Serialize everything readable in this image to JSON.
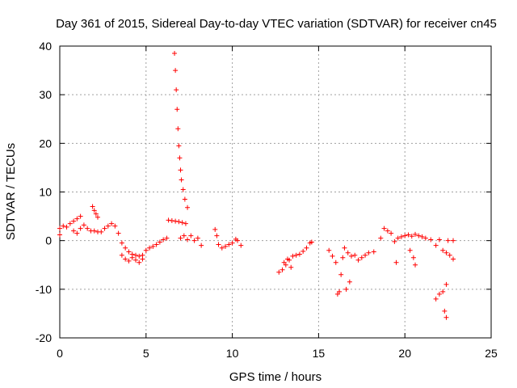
{
  "chart_data": {
    "type": "scatter",
    "title": "Day 361 of 2015, Sidereal Day-to-day VTEC variation (SDTVAR) for receiver cn45",
    "xlabel": "GPS time / hours",
    "ylabel": "SDTVAR / TECUs",
    "xlim": [
      0,
      25
    ],
    "ylim": [
      -20,
      40
    ],
    "xticks": [
      0,
      5,
      10,
      15,
      20,
      25
    ],
    "yticks": [
      -20,
      -10,
      0,
      10,
      20,
      30,
      40
    ],
    "grid": true,
    "marker": "+",
    "marker_color": "#ff0000",
    "series": [
      {
        "name": "SDTVAR",
        "points": [
          [
            0.0,
            2.5
          ],
          [
            0.0,
            1.2
          ],
          [
            0.2,
            3.0
          ],
          [
            0.4,
            2.8
          ],
          [
            0.6,
            3.5
          ],
          [
            0.8,
            4.0
          ],
          [
            1.0,
            4.5
          ],
          [
            1.2,
            5.0
          ],
          [
            0.8,
            2.0
          ],
          [
            1.0,
            1.5
          ],
          [
            1.2,
            2.5
          ],
          [
            1.4,
            3.2
          ],
          [
            1.6,
            2.5
          ],
          [
            1.8,
            2.0
          ],
          [
            1.9,
            7.0
          ],
          [
            2.0,
            6.2
          ],
          [
            2.1,
            5.5
          ],
          [
            2.2,
            4.8
          ],
          [
            2.0,
            2.0
          ],
          [
            2.2,
            1.8
          ],
          [
            2.4,
            1.8
          ],
          [
            2.6,
            2.5
          ],
          [
            2.8,
            3.0
          ],
          [
            3.0,
            3.5
          ],
          [
            3.2,
            3.0
          ],
          [
            3.4,
            1.5
          ],
          [
            3.6,
            -0.5
          ],
          [
            3.8,
            -1.5
          ],
          [
            4.0,
            -2.3
          ],
          [
            4.2,
            -2.8
          ],
          [
            4.4,
            -3.0
          ],
          [
            4.6,
            -3.2
          ],
          [
            4.8,
            -3.8
          ],
          [
            3.6,
            -3.0
          ],
          [
            3.8,
            -3.8
          ],
          [
            4.0,
            -4.2
          ],
          [
            4.2,
            -3.5
          ],
          [
            4.4,
            -4.0
          ],
          [
            4.6,
            -4.5
          ],
          [
            4.8,
            -3.0
          ],
          [
            5.0,
            -2.0
          ],
          [
            5.2,
            -1.5
          ],
          [
            5.4,
            -1.2
          ],
          [
            5.6,
            -0.8
          ],
          [
            5.8,
            -0.3
          ],
          [
            6.0,
            0.2
          ],
          [
            6.2,
            0.5
          ],
          [
            6.3,
            4.2
          ],
          [
            6.5,
            4.1
          ],
          [
            6.7,
            4.0
          ],
          [
            6.9,
            3.9
          ],
          [
            7.1,
            3.7
          ],
          [
            7.3,
            3.5
          ],
          [
            6.65,
            38.5
          ],
          [
            6.7,
            35.0
          ],
          [
            6.75,
            31.0
          ],
          [
            6.8,
            27.0
          ],
          [
            6.85,
            23.0
          ],
          [
            6.9,
            19.5
          ],
          [
            6.95,
            17.0
          ],
          [
            7.0,
            14.5
          ],
          [
            7.05,
            12.5
          ],
          [
            7.15,
            10.5
          ],
          [
            7.25,
            8.5
          ],
          [
            7.4,
            6.8
          ],
          [
            7.0,
            0.5
          ],
          [
            7.2,
            1.0
          ],
          [
            7.4,
            0.2
          ],
          [
            7.6,
            1.0
          ],
          [
            7.8,
            0.0
          ],
          [
            8.0,
            0.5
          ],
          [
            8.2,
            -1.0
          ],
          [
            9.0,
            2.3
          ],
          [
            9.1,
            1.0
          ],
          [
            9.2,
            -0.8
          ],
          [
            9.4,
            -1.5
          ],
          [
            9.6,
            -1.2
          ],
          [
            9.8,
            -0.8
          ],
          [
            10.0,
            -0.5
          ],
          [
            10.2,
            0.3
          ],
          [
            10.3,
            0.0
          ],
          [
            10.5,
            -1.0
          ],
          [
            12.7,
            -6.5
          ],
          [
            12.9,
            -6.0
          ],
          [
            13.1,
            -5.0
          ],
          [
            13.3,
            -4.0
          ],
          [
            13.5,
            -3.2
          ],
          [
            13.7,
            -3.0
          ],
          [
            13.9,
            -2.8
          ],
          [
            14.1,
            -2.2
          ],
          [
            14.3,
            -1.5
          ],
          [
            14.5,
            -0.5
          ],
          [
            14.6,
            -0.3
          ],
          [
            13.0,
            -4.5
          ],
          [
            13.2,
            -3.8
          ],
          [
            13.4,
            -5.5
          ],
          [
            15.6,
            -2.0
          ],
          [
            15.8,
            -3.2
          ],
          [
            16.0,
            -4.5
          ],
          [
            16.1,
            -11.0
          ],
          [
            16.2,
            -10.5
          ],
          [
            16.3,
            -7.0
          ],
          [
            16.6,
            -10.0
          ],
          [
            16.8,
            -8.5
          ],
          [
            16.5,
            -1.5
          ],
          [
            16.7,
            -2.5
          ],
          [
            16.9,
            -3.2
          ],
          [
            17.1,
            -3.0
          ],
          [
            17.3,
            -4.0
          ],
          [
            17.5,
            -3.5
          ],
          [
            17.7,
            -3.0
          ],
          [
            17.9,
            -2.5
          ],
          [
            18.2,
            -2.3
          ],
          [
            16.4,
            -3.5
          ],
          [
            18.6,
            0.5
          ],
          [
            18.8,
            2.5
          ],
          [
            19.0,
            2.0
          ],
          [
            19.2,
            1.5
          ],
          [
            19.4,
            -0.2
          ],
          [
            19.6,
            0.5
          ],
          [
            19.8,
            0.8
          ],
          [
            19.5,
            -4.5
          ],
          [
            20.0,
            1.0
          ],
          [
            20.2,
            1.2
          ],
          [
            20.4,
            0.9
          ],
          [
            20.6,
            1.3
          ],
          [
            20.8,
            1.0
          ],
          [
            21.0,
            0.8
          ],
          [
            20.3,
            -2.0
          ],
          [
            20.5,
            -3.5
          ],
          [
            20.6,
            -5.0
          ],
          [
            21.2,
            0.5
          ],
          [
            21.5,
            0.2
          ],
          [
            21.8,
            -1.0
          ],
          [
            22.0,
            0.2
          ],
          [
            22.2,
            -2.0
          ],
          [
            22.4,
            -2.5
          ],
          [
            22.6,
            -3.0
          ],
          [
            22.8,
            -3.8
          ],
          [
            22.5,
            0.0
          ],
          [
            22.8,
            0.0
          ],
          [
            21.8,
            -12.0
          ],
          [
            22.0,
            -11.0
          ],
          [
            22.2,
            -10.5
          ],
          [
            22.4,
            -9.0
          ],
          [
            22.3,
            -14.5
          ],
          [
            22.4,
            -15.8
          ]
        ]
      }
    ]
  }
}
